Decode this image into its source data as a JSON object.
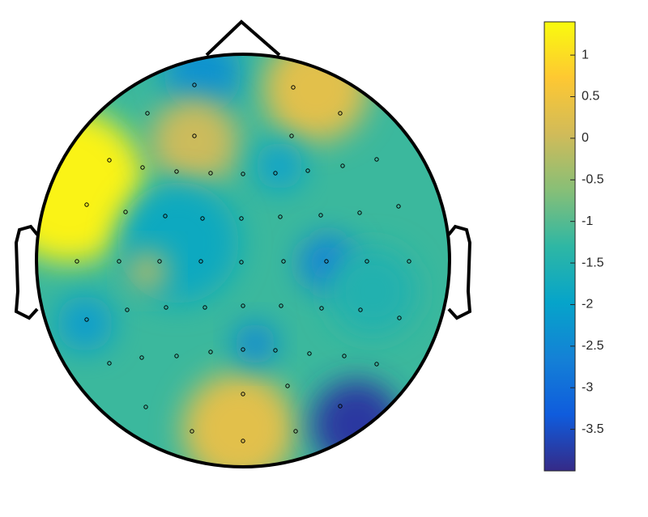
{
  "chart_data": {
    "type": "topoplot",
    "values": [
      -1.2,
      1.3,
      -2.3,
      0.3,
      0.0,
      -2.0,
      -1.8,
      -2.6,
      -2.1,
      0.3,
      -3.8,
      -0.2,
      -2.5,
      -1.5
    ],
    "clim": [
      -4,
      1.4
    ],
    "colorbar_ticks": [
      1,
      0.5,
      0,
      -0.5,
      -1,
      -1.5,
      -2,
      -2.5,
      -3,
      -3.5
    ],
    "colormap": [
      "#352a87",
      "#0f5cdd",
      "#1481d6",
      "#06a4ca",
      "#2eb7a4",
      "#87bf77",
      "#d1bb59",
      "#fec832",
      "#f9fb0e"
    ]
  }
}
